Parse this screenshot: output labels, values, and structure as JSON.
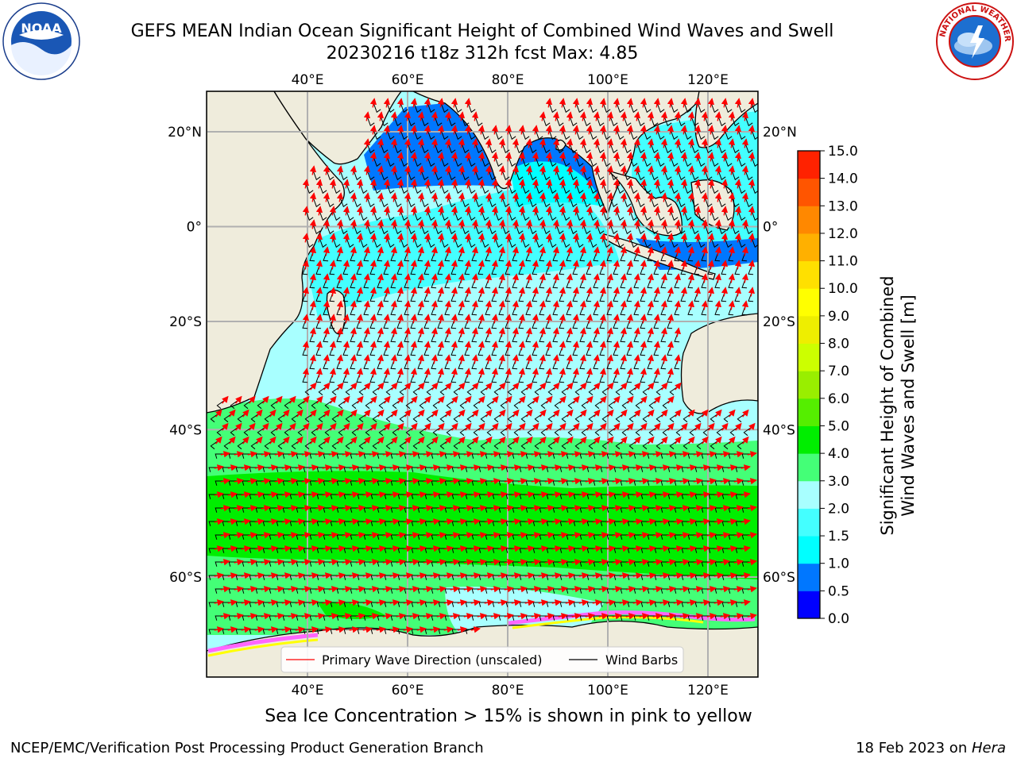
{
  "title": {
    "line1": "GEFS MEAN Indian Ocean Significant Height of Combined Wind Waves and Swell",
    "line2": "20230216 t18z 312h fcst   Max: 4.85"
  },
  "logos": {
    "left": {
      "icon": "noaa-logo",
      "text": "NOAA"
    },
    "right": {
      "icon": "nws-logo",
      "text": "NATIONAL WEATHER SERVICE"
    }
  },
  "map": {
    "lon_ticks": [
      "40°E",
      "60°E",
      "80°E",
      "100°E",
      "120°E"
    ],
    "lon_values": [
      40,
      60,
      80,
      100,
      120
    ],
    "lat_ticks_left": [
      "20°N",
      "0°",
      "20°S",
      "40°S",
      "60°S"
    ],
    "lat_ticks_right": [
      "20°N",
      "0°",
      "20°S",
      "40°S",
      "60°S"
    ],
    "lat_values": [
      20,
      0,
      -20,
      -40,
      -60
    ],
    "grid": true,
    "colors": {
      "land": "#efecdc",
      "coast": "#000000",
      "grid": "#b0b0b0",
      "wave_arrow": "#ff0000",
      "wind_barb": "#000000",
      "sea_ice": [
        "#ff66ff",
        "#ffff00"
      ]
    },
    "legend": {
      "wave_label": "Primary Wave Direction (unscaled)",
      "wind_label": "Wind Barbs"
    }
  },
  "colorbar": {
    "ticks": [
      "15.0",
      "14.0",
      "13.0",
      "12.0",
      "11.0",
      "10.0",
      "9.0",
      "8.0",
      "7.0",
      "6.0",
      "5.0",
      "4.0",
      "3.0",
      "2.0",
      "1.5",
      "1.0",
      "0.5",
      "0.0"
    ],
    "label_line1": "Significant Height of Combined",
    "label_line2": "Wind Waves and Swell [m]",
    "colors_bottom_to_top": [
      "#0000ff",
      "#0077ff",
      "#00ffff",
      "#44ffff",
      "#a8ffff",
      "#44ff77",
      "#00ee00",
      "#55ee00",
      "#99ee00",
      "#ccff00",
      "#eeee00",
      "#ffff00",
      "#ffe000",
      "#ffb000",
      "#ff8800",
      "#ff5500",
      "#ff2200"
    ]
  },
  "subnote": "Sea Ice Concentration > 15% is shown in pink to yellow",
  "footer": {
    "left": "NCEP/EMC/Verification Post Processing Product Generation Branch",
    "right_date": "18 Feb 2023 on ",
    "right_host": "Hera"
  }
}
